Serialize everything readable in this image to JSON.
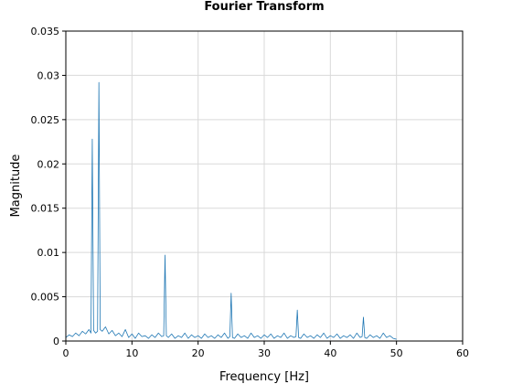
{
  "chart_data": {
    "type": "line",
    "title": "Fourier Transform",
    "xlabel": "Frequency [Hz]",
    "ylabel": "Magnitude",
    "xlim": [
      0,
      60
    ],
    "ylim": [
      0,
      0.035
    ],
    "x_ticks": [
      0,
      10,
      20,
      30,
      40,
      50,
      60
    ],
    "y_ticks": [
      0,
      0.005,
      0.01,
      0.015,
      0.02,
      0.025,
      0.03,
      0.035
    ],
    "x_tick_labels": [
      "0",
      "10",
      "20",
      "30",
      "40",
      "50",
      "60"
    ],
    "y_tick_labels": [
      "0",
      "0.005",
      "0.01",
      "0.015",
      "0.02",
      "0.025",
      "0.03",
      "0.035"
    ],
    "grid": true,
    "series": [
      {
        "color": "#1f77b4",
        "x": [
          0,
          0.5,
          1,
          1.5,
          2,
          2.5,
          3,
          3.5,
          3.8,
          4,
          4.2,
          4.5,
          4.8,
          5,
          5.2,
          5.5,
          6,
          6.5,
          7,
          7.5,
          8,
          8.5,
          9,
          9.5,
          10,
          10.5,
          11,
          11.5,
          12,
          12.5,
          13,
          13.5,
          14,
          14.5,
          14.8,
          15,
          15.2,
          15.5,
          16,
          16.5,
          17,
          17.5,
          18,
          18.5,
          19,
          19.5,
          20,
          20.5,
          21,
          21.5,
          22,
          22.5,
          23,
          23.5,
          24,
          24.5,
          24.8,
          25,
          25.2,
          25.5,
          26,
          26.5,
          27,
          27.5,
          28,
          28.5,
          29,
          29.5,
          30,
          30.5,
          31,
          31.5,
          32,
          32.5,
          33,
          33.5,
          34,
          34.5,
          34.8,
          35,
          35.2,
          35.5,
          36,
          36.5,
          37,
          37.5,
          38,
          38.5,
          39,
          39.5,
          40,
          40.5,
          41,
          41.5,
          42,
          42.5,
          43,
          43.5,
          44,
          44.5,
          44.8,
          45,
          45.2,
          45.5,
          46,
          46.5,
          47,
          47.5,
          48,
          48.5,
          49,
          49.5,
          50
        ],
        "y": [
          0.0004,
          0.0007,
          0.0005,
          0.0009,
          0.0006,
          0.0011,
          0.0008,
          0.0013,
          0.0009,
          0.0228,
          0.0012,
          0.0009,
          0.0011,
          0.0292,
          0.0013,
          0.0011,
          0.0016,
          0.0008,
          0.0012,
          0.0006,
          0.0009,
          0.0005,
          0.0013,
          0.0004,
          0.0008,
          0.0003,
          0.0009,
          0.0005,
          0.0006,
          0.0003,
          0.0007,
          0.0004,
          0.0009,
          0.0005,
          0.0006,
          0.0097,
          0.0006,
          0.0004,
          0.0008,
          0.0003,
          0.0006,
          0.0004,
          0.0009,
          0.0003,
          0.0007,
          0.0004,
          0.0006,
          0.0003,
          0.0008,
          0.0004,
          0.0006,
          0.0003,
          0.0007,
          0.0004,
          0.0009,
          0.0003,
          0.0005,
          0.0054,
          0.0004,
          0.0003,
          0.0008,
          0.0004,
          0.0006,
          0.0003,
          0.0009,
          0.0004,
          0.0006,
          0.0003,
          0.0007,
          0.0004,
          0.0008,
          0.0003,
          0.0006,
          0.0004,
          0.0009,
          0.0003,
          0.0006,
          0.0004,
          0.0005,
          0.0035,
          0.0004,
          0.0003,
          0.0008,
          0.0004,
          0.0006,
          0.0003,
          0.0007,
          0.0004,
          0.0009,
          0.0003,
          0.0006,
          0.0004,
          0.0008,
          0.0003,
          0.0006,
          0.0004,
          0.0007,
          0.0003,
          0.0009,
          0.0004,
          0.0005,
          0.0027,
          0.0004,
          0.0003,
          0.0007,
          0.0004,
          0.0006,
          0.0003,
          0.0009,
          0.0004,
          0.0006,
          0.0003,
          0.0002
        ]
      }
    ]
  }
}
